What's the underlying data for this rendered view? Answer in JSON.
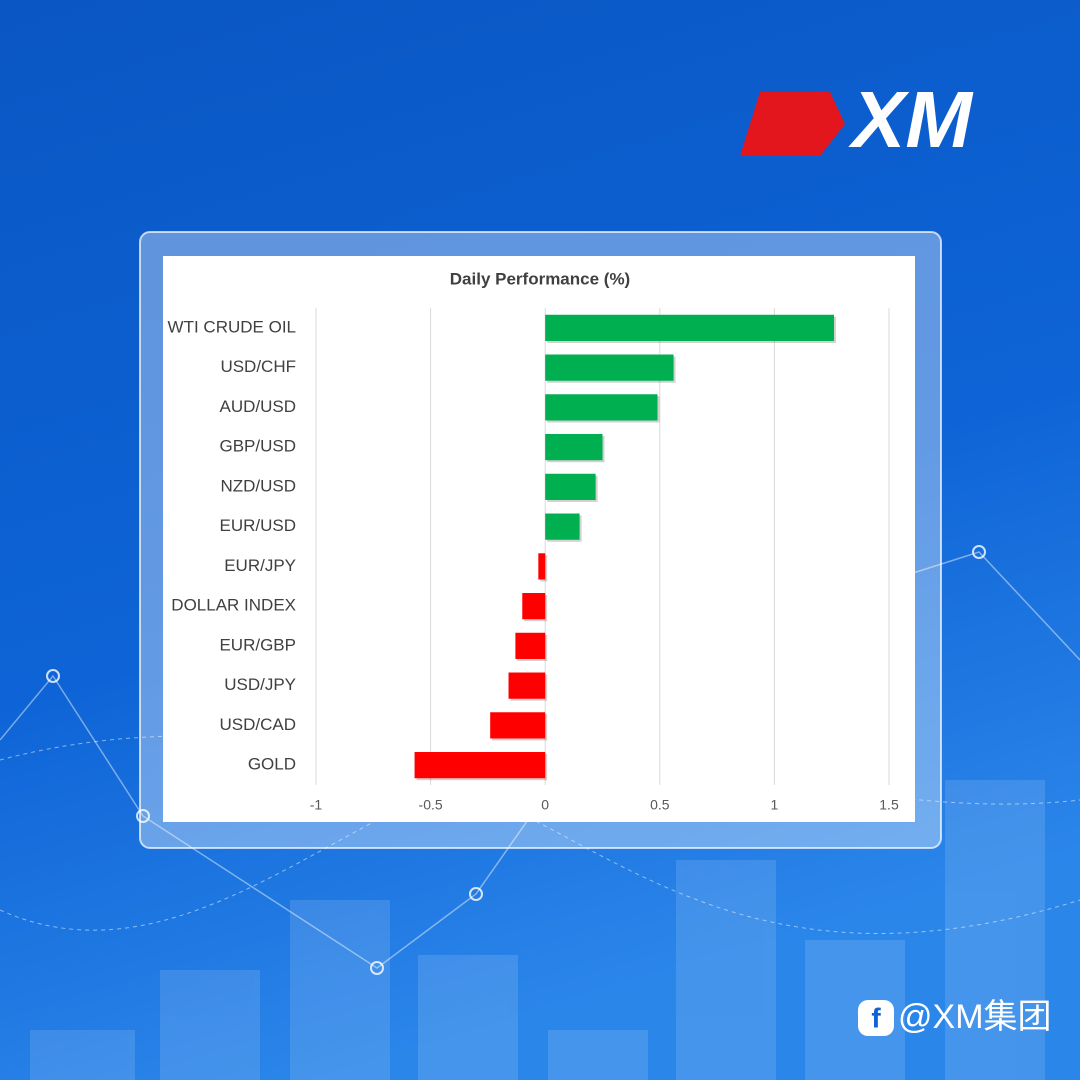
{
  "chart_data": {
    "type": "bar",
    "orientation": "horizontal",
    "title": "Daily Performance (%)",
    "categories": [
      "WTI CRUDE OIL",
      "USD/CHF",
      "AUD/USD",
      "GBP/USD",
      "NZD/USD",
      "EUR/USD",
      "EUR/JPY",
      "DOLLAR INDEX",
      "EUR/GBP",
      "USD/JPY",
      "USD/CAD",
      "GOLD"
    ],
    "values": [
      1.26,
      0.56,
      0.49,
      0.25,
      0.22,
      0.15,
      -0.03,
      -0.1,
      -0.13,
      -0.16,
      -0.24,
      -0.57
    ],
    "positive_color": "#00b050",
    "negative_color": "#ff0000",
    "xlim": [
      -1,
      1.5
    ],
    "xticks": [
      -1,
      -0.5,
      0,
      0.5,
      1,
      1.5
    ],
    "grid": true
  },
  "brand": {
    "logo": "XM",
    "social": "@XM集团"
  }
}
